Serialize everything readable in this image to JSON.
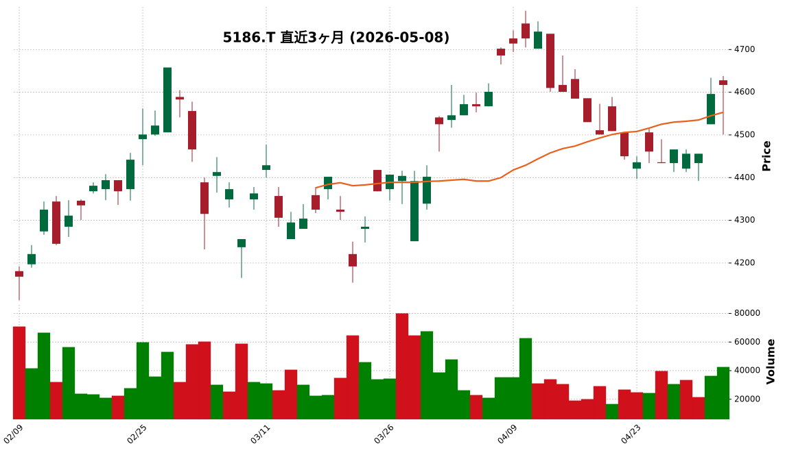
{
  "chart_data": {
    "type": "candlestick",
    "title": "5186.T  直近3ヶ月  (2026-05-08)",
    "categories": [
      "02/09",
      null,
      null,
      null,
      null,
      null,
      null,
      null,
      null,
      null,
      "02/25",
      null,
      null,
      null,
      null,
      null,
      null,
      null,
      null,
      null,
      "03/11",
      null,
      null,
      null,
      null,
      null,
      null,
      null,
      null,
      null,
      "03/26",
      null,
      null,
      null,
      null,
      null,
      null,
      null,
      null,
      null,
      "04/09",
      null,
      null,
      null,
      null,
      null,
      null,
      null,
      null,
      null,
      "04/23",
      null,
      null,
      null,
      null,
      null,
      null,
      null
    ],
    "open": [
      4181,
      4197,
      4274,
      4344,
      4285,
      4346,
      4368,
      4373,
      4394,
      4373,
      4490,
      4501,
      4506,
      4589,
      4556,
      4389,
      4404,
      4349,
      4237,
      4349,
      4418,
      4357,
      4256,
      4280,
      4359,
      4373,
      4325,
      4221,
      4280,
      4418,
      4373,
      4392,
      4251,
      4339,
      4541,
      4535,
      4546,
      4572,
      4567,
      4702,
      4726,
      4761,
      4702,
      4737,
      4617,
      4631,
      4586,
      4511,
      4567,
      4506,
      4421,
      4506,
      4436,
      4434,
      4421,
      4434,
      4525,
      4628
    ],
    "high": [
      4192,
      4242,
      4344,
      4357,
      4347,
      4349,
      4389,
      4408,
      4394,
      4458,
      4562,
      4557,
      4658,
      4605,
      4578,
      4400,
      4448,
      4389,
      4256,
      4378,
      4477,
      4378,
      4320,
      4338,
      4378,
      4402,
      4357,
      4250,
      4309,
      4418,
      4407,
      4416,
      4416,
      4429,
      4544,
      4617,
      4594,
      4599,
      4621,
      4705,
      4745,
      4791,
      4766,
      4737,
      4686,
      4654,
      4586,
      4573,
      4589,
      4506,
      4450,
      4517,
      4490,
      4466,
      4466,
      4456,
      4634,
      4638
    ],
    "low": [
      4113,
      4189,
      4266,
      4242,
      4261,
      4301,
      4363,
      4347,
      4336,
      4346,
      4429,
      4498,
      4506,
      4541,
      4437,
      4232,
      4365,
      4330,
      4165,
      4325,
      4400,
      4285,
      4256,
      4280,
      4317,
      4349,
      4301,
      4154,
      4248,
      4368,
      4346,
      4338,
      4251,
      4325,
      4461,
      4517,
      4546,
      4553,
      4567,
      4665,
      4694,
      4705,
      4702,
      4601,
      4601,
      4585,
      4530,
      4501,
      4509,
      4442,
      4397,
      4434,
      4434,
      4413,
      4413,
      4392,
      4525,
      4501
    ],
    "close": [
      4168,
      4221,
      4325,
      4245,
      4311,
      4335,
      4381,
      4394,
      4368,
      4442,
      4501,
      4522,
      4658,
      4583,
      4466,
      4315,
      4413,
      4373,
      4256,
      4363,
      4429,
      4306,
      4295,
      4304,
      4325,
      4402,
      4320,
      4192,
      4285,
      4368,
      4407,
      4404,
      4392,
      4402,
      4525,
      4546,
      4572,
      4567,
      4601,
      4686,
      4714,
      4726,
      4742,
      4610,
      4601,
      4585,
      4530,
      4501,
      4509,
      4450,
      4436,
      4461,
      4434,
      4466,
      4456,
      4456,
      4596,
      4617
    ],
    "up_color": "#006a3e",
    "down_color": "#a61e2b",
    "ma": {
      "color": "#e8601c",
      "values": [
        null,
        null,
        null,
        null,
        null,
        null,
        null,
        null,
        null,
        null,
        null,
        null,
        null,
        null,
        null,
        null,
        null,
        null,
        null,
        null,
        null,
        null,
        null,
        null,
        4376,
        4384,
        4388,
        4381,
        4383,
        4386,
        4389,
        4389,
        4389,
        4391,
        4392,
        4394,
        4396,
        4392,
        4392,
        4400,
        4418,
        4429,
        4444,
        4458,
        4468,
        4474,
        4484,
        4493,
        4501,
        4506,
        4508,
        4516,
        4525,
        4530,
        4532,
        4535,
        4545,
        4553
      ]
    },
    "ylim": [
      4110,
      4800
    ],
    "yticks": [
      4200,
      4300,
      4400,
      4500,
      4600,
      4700
    ],
    "y_label": "Price",
    "grid": true,
    "volume": {
      "values": [
        70800,
        41600,
        66500,
        32000,
        56400,
        23800,
        23400,
        21000,
        22400,
        27700,
        59800,
        35800,
        53100,
        32000,
        58400,
        60300,
        30100,
        25300,
        58800,
        32000,
        31000,
        26200,
        40600,
        30100,
        22400,
        22900,
        34900,
        64600,
        45900,
        33900,
        34400,
        80000,
        64600,
        67500,
        38700,
        47800,
        26200,
        22900,
        21000,
        35300,
        35300,
        62700,
        31000,
        33900,
        30600,
        19000,
        20000,
        29100,
        16600,
        26700,
        24800,
        24300,
        39700,
        30600,
        33400,
        21400,
        36300,
        42500
      ],
      "colors": [
        "#d0101a",
        "#008000",
        "#008000",
        "#d0101a",
        "#008000",
        "#008000",
        "#008000",
        "#008000",
        "#d0101a",
        "#008000",
        "#008000",
        "#008000",
        "#008000",
        "#d0101a",
        "#d0101a",
        "#d0101a",
        "#008000",
        "#d0101a",
        "#d0101a",
        "#008000",
        "#008000",
        "#d0101a",
        "#d0101a",
        "#008000",
        "#008000",
        "#008000",
        "#d0101a",
        "#d0101a",
        "#008000",
        "#008000",
        "#008000",
        "#d0101a",
        "#d0101a",
        "#008000",
        "#008000",
        "#008000",
        "#008000",
        "#d0101a",
        "#008000",
        "#008000",
        "#008000",
        "#008000",
        "#d0101a",
        "#d0101a",
        "#d0101a",
        "#d0101a",
        "#d0101a",
        "#d0101a",
        "#008000",
        "#d0101a",
        "#d0101a",
        "#008000",
        "#d0101a",
        "#008000",
        "#d0101a",
        "#d0101a",
        "#008000",
        "#008000"
      ],
      "ylim": [
        6000,
        86000
      ],
      "yticks": [
        20000,
        40000,
        60000,
        80000
      ],
      "y_label": "Volume"
    }
  }
}
